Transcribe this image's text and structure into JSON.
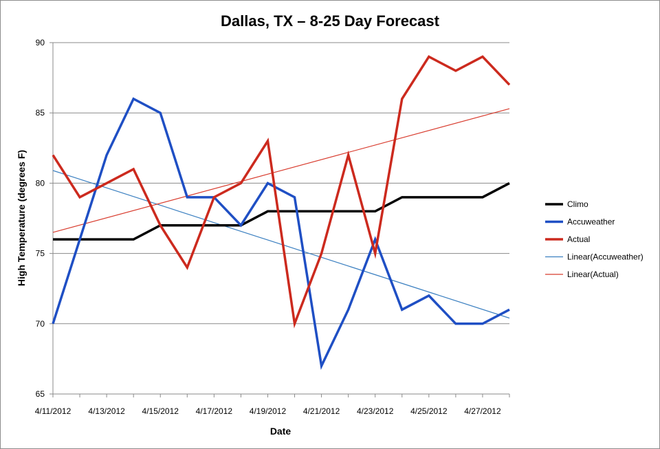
{
  "chart_data": {
    "type": "line",
    "title": "Dallas, TX – 8-25 Day Forecast",
    "xlabel": "Date",
    "ylabel": "High Temperature (degrees F)",
    "ylim": [
      65,
      90
    ],
    "yticks": [
      65,
      70,
      75,
      80,
      85,
      90
    ],
    "grid": "horizontal major gridlines",
    "legend": "right",
    "x": [
      "4/11/2012",
      "4/12/2012",
      "4/13/2012",
      "4/14/2012",
      "4/15/2012",
      "4/16/2012",
      "4/17/2012",
      "4/18/2012",
      "4/19/2012",
      "4/20/2012",
      "4/21/2012",
      "4/22/2012",
      "4/23/2012",
      "4/24/2012",
      "4/25/2012",
      "4/26/2012",
      "4/27/2012",
      "4/28/2012"
    ],
    "xtick_labels": [
      "4/11/2012",
      "4/13/2012",
      "4/15/2012",
      "4/17/2012",
      "4/19/2012",
      "4/21/2012",
      "4/23/2012",
      "4/25/2012",
      "4/27/2012"
    ],
    "series": [
      {
        "name": "Climo",
        "color": "#000000",
        "values": [
          76,
          76,
          76,
          76,
          77,
          77,
          77,
          77,
          78,
          78,
          78,
          78,
          78,
          79,
          79,
          79,
          79,
          80
        ]
      },
      {
        "name": "Accuweather",
        "color": "#1f4fc4",
        "values": [
          70,
          76,
          82,
          86,
          85,
          79,
          79,
          77,
          80,
          79,
          67,
          71,
          76,
          71,
          72,
          70,
          70,
          71
        ]
      },
      {
        "name": "Actual",
        "color": "#cc2a1e",
        "values": [
          82,
          79,
          80,
          81,
          77,
          74,
          79,
          80,
          83,
          70,
          75,
          82,
          75,
          86,
          89,
          88,
          89,
          87
        ]
      }
    ],
    "trendlines": [
      {
        "name": "Linear(Accuweather)",
        "color": "#3a7fc0",
        "start": 80.9,
        "end": 70.4
      },
      {
        "name": "Linear(Actual)",
        "color": "#d83a2c",
        "start": 76.5,
        "end": 85.3
      }
    ]
  }
}
